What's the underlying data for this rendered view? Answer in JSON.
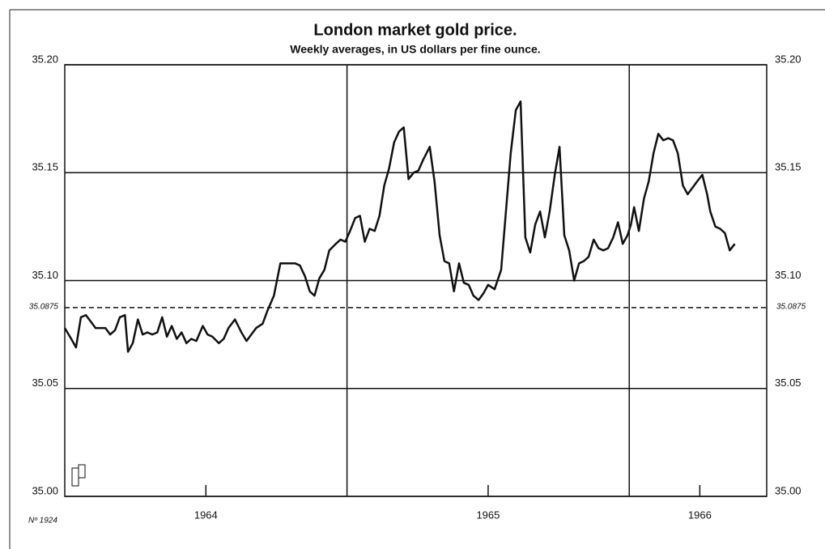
{
  "chart_data": {
    "type": "line",
    "title": "London market gold price.",
    "subtitle": "Weekly averages, in US dollars per fine ounce.",
    "note": "Nº 1924",
    "x": [
      1964.0,
      1964.023,
      1964.04,
      1964.057,
      1964.075,
      1964.092,
      1964.109,
      1964.126,
      1964.144,
      1964.161,
      1964.178,
      1964.195,
      1964.213,
      1964.224,
      1964.241,
      1964.259,
      1964.276,
      1964.293,
      1964.31,
      1964.328,
      1964.345,
      1964.362,
      1964.379,
      1964.397,
      1964.414,
      1964.431,
      1964.448,
      1964.466,
      1964.489,
      1964.506,
      1964.523,
      1964.546,
      1964.563,
      1964.58,
      1964.603,
      1964.626,
      1964.644,
      1964.661,
      1964.678,
      1964.701,
      1964.718,
      1964.741,
      1964.764,
      1964.782,
      1964.799,
      1964.816,
      1964.833,
      1964.851,
      1964.868,
      1964.885,
      1964.902,
      1964.92,
      1964.937,
      1964.96,
      1964.977,
      1964.994,
      1965.011,
      1965.029,
      1965.046,
      1965.063,
      1965.08,
      1965.098,
      1965.115,
      1965.132,
      1965.149,
      1965.167,
      1965.184,
      1965.201,
      1965.218,
      1965.236,
      1965.253,
      1965.27,
      1965.293,
      1965.31,
      1965.328,
      1965.345,
      1965.362,
      1965.379,
      1965.397,
      1965.414,
      1965.431,
      1965.448,
      1965.466,
      1965.483,
      1965.5,
      1965.523,
      1965.546,
      1965.563,
      1965.58,
      1965.598,
      1965.615,
      1965.632,
      1965.649,
      1965.667,
      1965.684,
      1965.701,
      1965.718,
      1965.736,
      1965.753,
      1965.77,
      1965.787,
      1965.805,
      1965.822,
      1965.839,
      1965.856,
      1965.874,
      1965.891,
      1965.908,
      1965.925,
      1965.943,
      1965.96,
      1965.977,
      1965.994,
      1966.006,
      1966.017,
      1966.034,
      1966.052,
      1966.069,
      1966.086,
      1966.103,
      1966.121,
      1966.138,
      1966.155,
      1966.172,
      1966.19,
      1966.207,
      1966.224,
      1966.241,
      1966.259,
      1966.276,
      1966.287,
      1966.305,
      1966.322,
      1966.339,
      1966.356,
      1966.374
    ],
    "series": [
      {
        "color": "#111111",
        "values": [
          35.078,
          35.073,
          35.069,
          35.083,
          35.084,
          35.081,
          35.078,
          35.078,
          35.078,
          35.075,
          35.077,
          35.083,
          35.084,
          35.067,
          35.071,
          35.082,
          35.075,
          35.076,
          35.075,
          35.076,
          35.083,
          35.074,
          35.079,
          35.073,
          35.076,
          35.071,
          35.073,
          35.072,
          35.079,
          35.075,
          35.074,
          35.071,
          35.073,
          35.078,
          35.082,
          35.076,
          35.072,
          35.075,
          35.078,
          35.08,
          35.086,
          35.093,
          35.108,
          35.108,
          35.108,
          35.108,
          35.107,
          35.102,
          35.095,
          35.093,
          35.101,
          35.105,
          35.114,
          35.117,
          35.119,
          35.118,
          35.123,
          35.129,
          35.13,
          35.118,
          35.124,
          35.123,
          35.13,
          35.144,
          35.152,
          35.164,
          35.169,
          35.171,
          35.147,
          35.15,
          35.151,
          35.156,
          35.162,
          35.146,
          35.121,
          35.109,
          35.108,
          35.095,
          35.108,
          35.099,
          35.098,
          35.093,
          35.091,
          35.094,
          35.098,
          35.096,
          35.105,
          35.132,
          35.159,
          35.179,
          35.183,
          35.12,
          35.113,
          35.126,
          35.132,
          35.12,
          35.132,
          35.149,
          35.162,
          35.121,
          35.114,
          35.1,
          35.108,
          35.109,
          35.111,
          35.119,
          35.115,
          35.114,
          35.115,
          35.12,
          35.127,
          35.117,
          35.121,
          35.126,
          35.134,
          35.123,
          35.138,
          35.146,
          35.159,
          35.168,
          35.165,
          35.166,
          35.165,
          35.159,
          35.144,
          35.14,
          35.143,
          35.146,
          35.149,
          35.14,
          35.132,
          35.125,
          35.124,
          35.122,
          35.114,
          35.117
        ]
      }
    ],
    "xlim": [
      1964.0,
      1966.487
    ],
    "xticks": [
      {
        "value": 1964.5,
        "label": "1964"
      },
      {
        "value": 1965.5,
        "label": "1965"
      },
      {
        "value": 1966.25,
        "label": "1966"
      }
    ],
    "xgrid": [
      1965,
      1966
    ],
    "ylim": [
      35.0,
      35.2
    ],
    "yticks": [
      {
        "value": 35.0,
        "label": "35.00"
      },
      {
        "value": 35.05,
        "label": "35.05"
      },
      {
        "value": 35.1,
        "label": "35.10"
      },
      35.15,
      {
        "value": 35.2,
        "label": "35.20"
      }
    ],
    "reference_line": 35.0875,
    "grid": true
  }
}
